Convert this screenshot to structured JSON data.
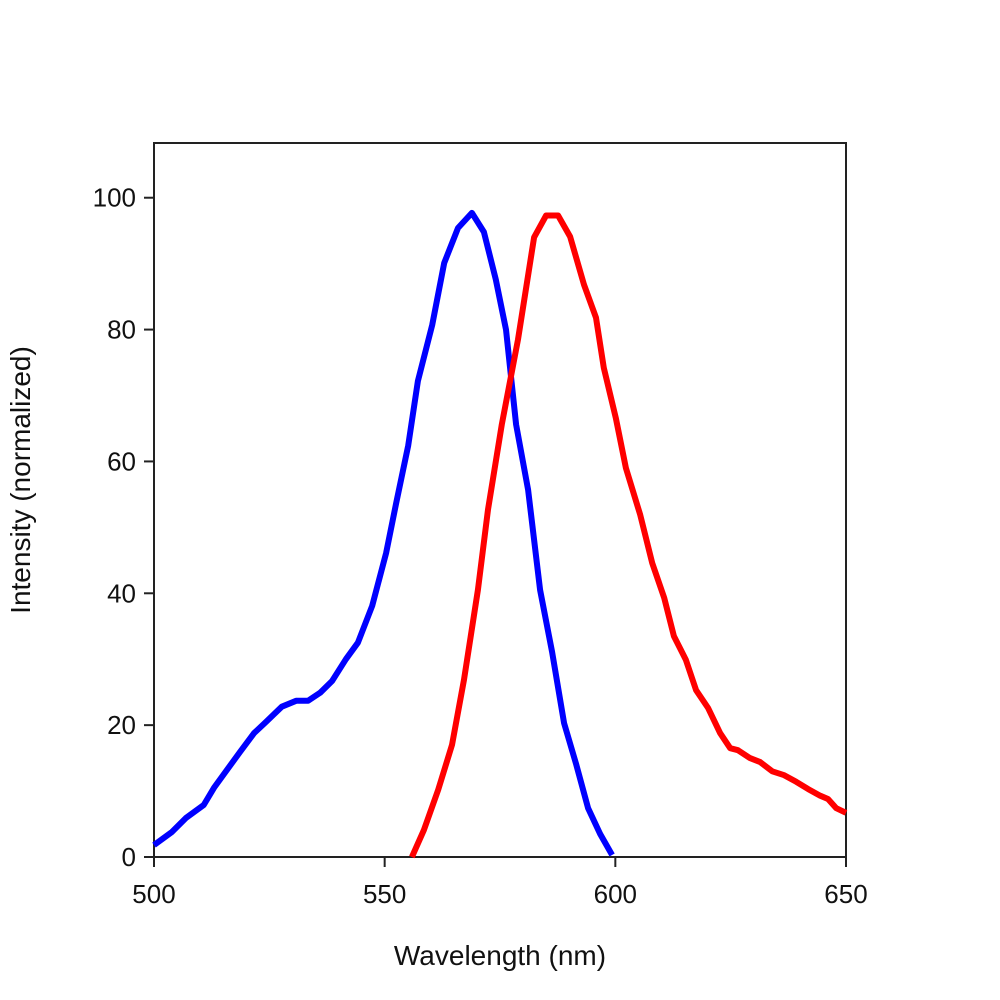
{
  "chart_data": {
    "type": "line",
    "title": "",
    "xlabel": "Wavelength (nm)",
    "ylabel": "Intensity (normalized)",
    "xlim": [
      500,
      650
    ],
    "ylim": [
      0,
      108.3
    ],
    "xticks": [
      500,
      550,
      600,
      650
    ],
    "yticks": [
      0,
      20,
      40,
      60,
      80,
      100
    ],
    "grid": false,
    "legend": "none",
    "series": [
      {
        "color": "#0000ff",
        "x": [
          500,
          503.9,
          506.9,
          510.8,
          513,
          518.6,
          521.7,
          524.3,
          527.7,
          530.8,
          533.4,
          536,
          538.6,
          541.6,
          544.2,
          547.3,
          550.3,
          552.5,
          555.1,
          557.2,
          560.3,
          562.9,
          565.9,
          568.9,
          571.5,
          574.1,
          576.3,
          578.5,
          581.1,
          583.7,
          586.3,
          588.9,
          591.5,
          594.1,
          596.7,
          599.3
        ],
        "y": [
          1.8,
          3.8,
          5.9,
          7.9,
          10.5,
          15.9,
          18.8,
          20.5,
          22.8,
          23.7,
          23.7,
          24.9,
          26.7,
          30.0,
          32.5,
          38.1,
          46.1,
          53.7,
          62.4,
          72.2,
          80.7,
          90.1,
          95.4,
          97.7,
          94.8,
          87.6,
          80.0,
          65.6,
          55.7,
          40.5,
          31.1,
          20.3,
          14.1,
          7.4,
          3.5,
          0.3
        ]
      },
      {
        "color": "#ff0000",
        "x": [
          555.9,
          558.5,
          561.6,
          564.6,
          567.2,
          570.2,
          572.4,
          575.4,
          578.9,
          582.4,
          585,
          587.6,
          590.2,
          593.2,
          595.8,
          597.5,
          600.1,
          602.3,
          605.4,
          608,
          610.6,
          612.7,
          615.3,
          617.5,
          620.1,
          622.7,
          624.9,
          626.6,
          629.2,
          631.4,
          634,
          636.6,
          639.2,
          641.8,
          644.4,
          646.1,
          647.9,
          650
        ],
        "y": [
          0,
          4.1,
          10.2,
          17.0,
          26.9,
          40.5,
          52.7,
          65.6,
          78.5,
          94.0,
          97.3,
          97.3,
          94.1,
          86.8,
          81.8,
          74.2,
          66.6,
          59.0,
          51.9,
          44.6,
          39.3,
          33.5,
          29.9,
          25.3,
          22.6,
          18.8,
          16.5,
          16.2,
          15.0,
          14.4,
          13.0,
          12.4,
          11.4,
          10.3,
          9.3,
          8.8,
          7.4,
          6.7
        ]
      }
    ]
  }
}
